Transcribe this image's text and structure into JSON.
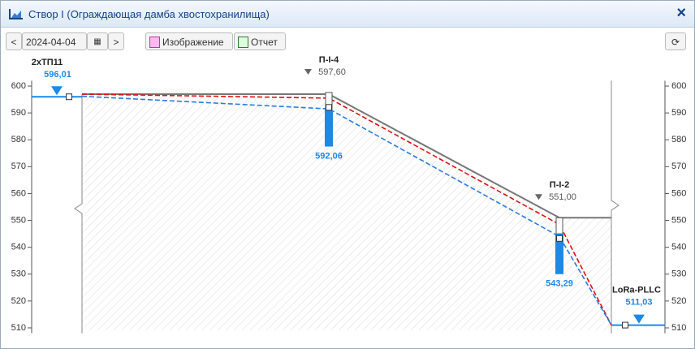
{
  "window": {
    "title": "Створ I (Ограждающая дамба хвостохранилища)",
    "close": "×"
  },
  "toolbar": {
    "date": "2024-04-04",
    "image_button": "Изображение",
    "report_button": "Отчет"
  },
  "chart_data": {
    "type": "section",
    "categories": [
      "2хТП11",
      "П-I-4",
      "П-I-2",
      "LoRa-PLLC"
    ],
    "ylim": [
      508,
      602
    ],
    "yticks": [
      510,
      520,
      530,
      540,
      550,
      560,
      570,
      580,
      590,
      600
    ],
    "water_level": {
      "color": "#1e88e5",
      "values": [
        596.01,
        592.06,
        543.29,
        511.03
      ],
      "value_labels": [
        "596,01",
        "592,06",
        "543,29",
        "511,03"
      ]
    },
    "crest": {
      "color": "#666666",
      "values": [
        null,
        597.6,
        551.0,
        null
      ],
      "value_labels": [
        null,
        "597,60",
        "551,00",
        null
      ]
    },
    "filter_top": [
      null,
      591,
      545,
      null
    ],
    "filter_bottom": [
      null,
      577.5,
      530,
      null
    ],
    "dam": {
      "color": "#777777",
      "values": [
        597,
        597,
        551,
        551
      ]
    },
    "line_red": {
      "color": "#e01010",
      "values": [
        597,
        595.5,
        548.5,
        511
      ]
    },
    "line_blue": {
      "color": "#2a7ae2",
      "values": [
        596.2,
        591.5,
        544,
        511
      ]
    }
  }
}
